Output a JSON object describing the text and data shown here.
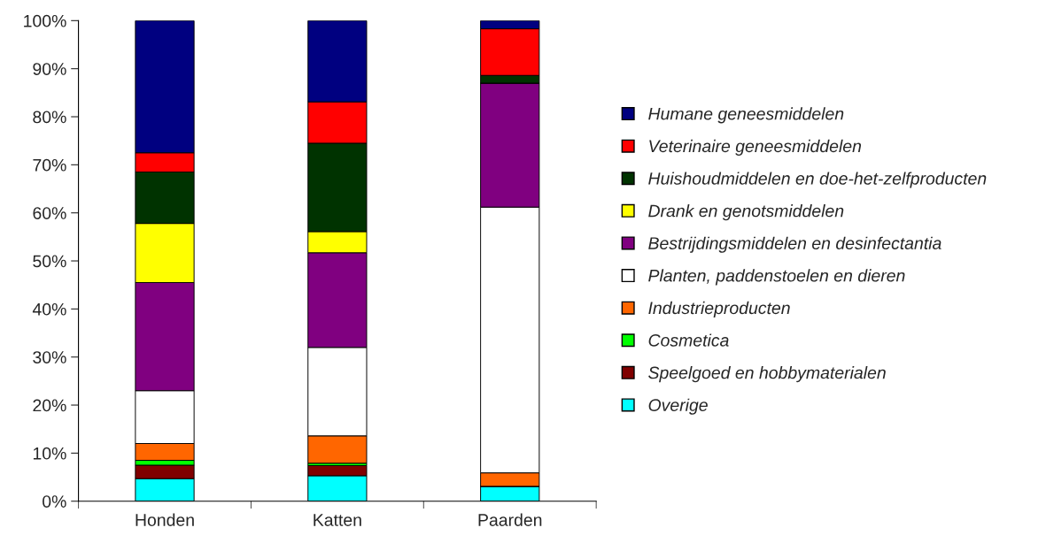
{
  "chart_data": {
    "type": "bar",
    "stacked": true,
    "categories": [
      "Honden",
      "Katten",
      "Paarden"
    ],
    "series": [
      {
        "name": "Overige",
        "color": "#00ffff",
        "values": [
          4.7,
          5.3,
          3.1
        ]
      },
      {
        "name": "Speelgoed en hobbymaterialen",
        "color": "#800000",
        "values": [
          2.8,
          2.1,
          0
        ]
      },
      {
        "name": "Cosmetica",
        "color": "#00ff00",
        "values": [
          1.0,
          0.5,
          0
        ]
      },
      {
        "name": "Industrieproducten",
        "color": "#ff6600",
        "values": [
          3.5,
          5.7,
          2.8
        ]
      },
      {
        "name": "Planten, paddenstoelen en dieren",
        "color": "#ffffff",
        "values": [
          11.0,
          18.4,
          55.3
        ]
      },
      {
        "name": "Bestrijdingsmiddelen en desinfectantia",
        "color": "#800080",
        "values": [
          22.5,
          19.7,
          25.8
        ]
      },
      {
        "name": "Drank en genotsmiddelen",
        "color": "#ffff00",
        "values": [
          12.3,
          4.4,
          0
        ]
      },
      {
        "name": "Huishoudmiddelen en doe-het-zelfproducten",
        "color": "#003300",
        "values": [
          10.7,
          18.4,
          1.6
        ]
      },
      {
        "name": "Veterinaire geneesmiddelen",
        "color": "#ff0000",
        "values": [
          4.0,
          8.6,
          9.7
        ]
      },
      {
        "name": "Humane geneesmiddelen",
        "color": "#000080",
        "values": [
          27.5,
          16.9,
          1.7
        ]
      }
    ],
    "ylim": [
      0,
      100
    ],
    "yticks": [
      {
        "value": 0,
        "label": "0%"
      },
      {
        "value": 10,
        "label": "10%"
      },
      {
        "value": 20,
        "label": "20%"
      },
      {
        "value": 30,
        "label": "30%"
      },
      {
        "value": 40,
        "label": "40%"
      },
      {
        "value": 50,
        "label": "50%"
      },
      {
        "value": 60,
        "label": "60%"
      },
      {
        "value": 70,
        "label": "70%"
      },
      {
        "value": 80,
        "label": "80%"
      },
      {
        "value": 90,
        "label": "90%"
      },
      {
        "value": 100,
        "label": "100%"
      }
    ],
    "legend": "right",
    "grid": false
  }
}
